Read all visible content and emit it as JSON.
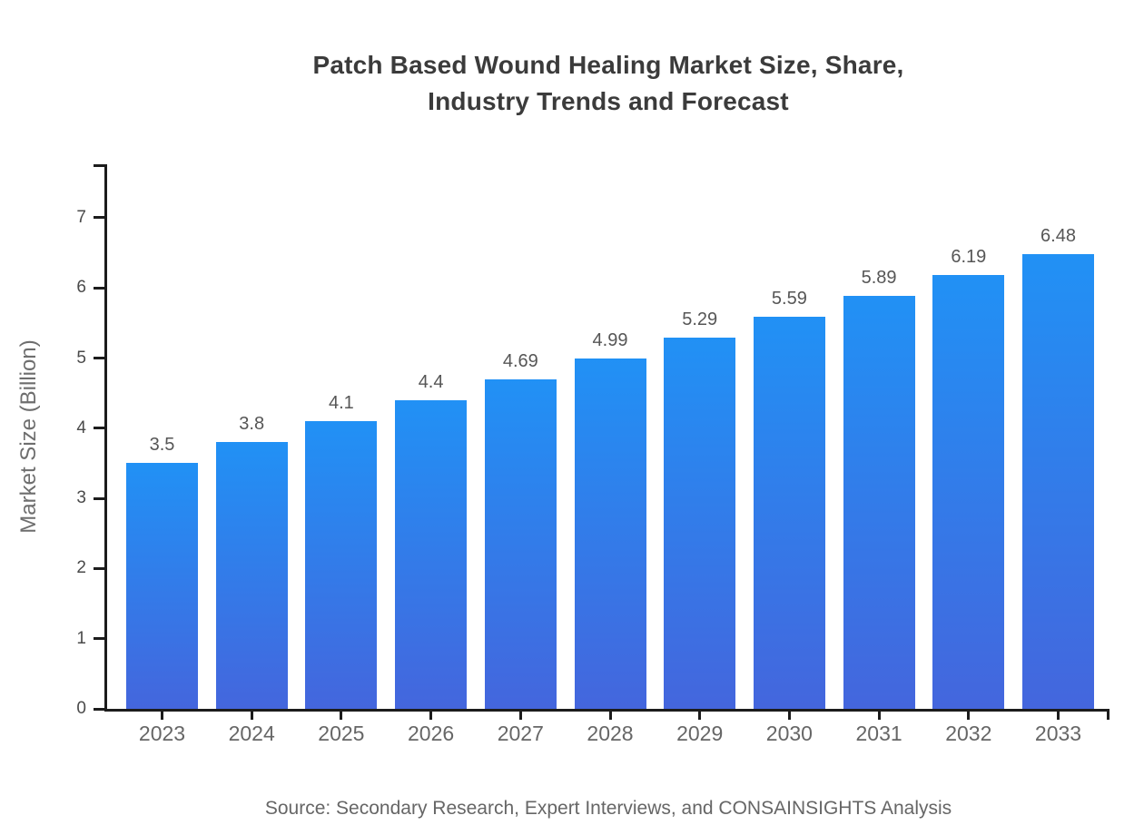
{
  "title": {
    "line1": "Patch Based Wound Healing Market Size, Share,",
    "line2": "Industry Trends and Forecast"
  },
  "source_text": "Source: Secondary Research, Expert Interviews, and CONSAINSIGHTS Analysis",
  "colors": {
    "bar_gradient_top": "#2191f5",
    "bar_gradient_bottom": "#4466dd",
    "axis": "#1c1c1c",
    "title_text": "#3b3b3b",
    "value_label_text": "#565656",
    "tick_label_text": "#4a4a4a",
    "muted_text": "#666666"
  },
  "chart_data": {
    "type": "bar",
    "title": "Patch Based Wound Healing Market Size, Share, Industry Trends and Forecast",
    "categories": [
      "2023",
      "2024",
      "2025",
      "2026",
      "2027",
      "2028",
      "2029",
      "2030",
      "2031",
      "2032",
      "2033"
    ],
    "values": [
      3.5,
      3.8,
      4.1,
      4.4,
      4.69,
      4.99,
      5.29,
      5.59,
      5.89,
      6.19,
      6.48
    ],
    "value_labels": [
      "3.5",
      "3.8",
      "4.1",
      "4.4",
      "4.69",
      "4.99",
      "5.29",
      "5.59",
      "5.89",
      "6.19",
      "6.48"
    ],
    "xlabel": "",
    "ylabel": "Market Size (Billion)",
    "yticks": [
      0,
      1,
      2,
      3,
      4,
      5,
      6,
      7
    ],
    "ylim": [
      0,
      7.76
    ],
    "grid": false,
    "legend": false,
    "bar_label_position": "above"
  }
}
